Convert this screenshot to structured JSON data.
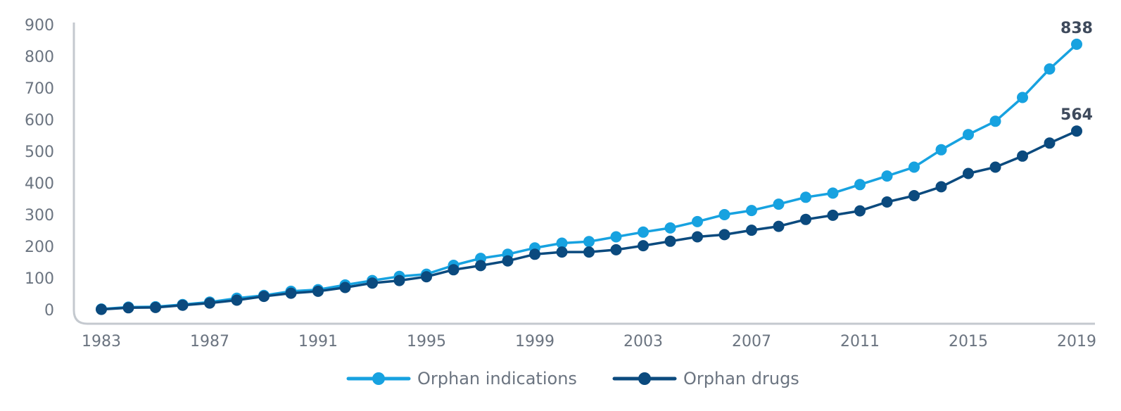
{
  "chart_data": {
    "type": "line",
    "x": [
      1983,
      1984,
      1985,
      1986,
      1987,
      1988,
      1989,
      1990,
      1991,
      1992,
      1993,
      1994,
      1995,
      1996,
      1997,
      1998,
      1999,
      2000,
      2001,
      2002,
      2003,
      2004,
      2005,
      2006,
      2007,
      2008,
      2009,
      2010,
      2011,
      2012,
      2013,
      2014,
      2015,
      2016,
      2017,
      2018,
      2019
    ],
    "xticks": [
      "1983",
      "1987",
      "1991",
      "1995",
      "1999",
      "2003",
      "2007",
      "2011",
      "2015",
      "2019"
    ],
    "yticks": [
      "0",
      "100",
      "200",
      "300",
      "400",
      "500",
      "600",
      "700",
      "800",
      "900"
    ],
    "ylim": [
      0,
      900
    ],
    "series": [
      {
        "name": "Orphan indications",
        "color": "#17a2e0",
        "values": [
          2,
          8,
          9,
          16,
          24,
          36,
          45,
          58,
          63,
          78,
          92,
          105,
          112,
          140,
          162,
          175,
          195,
          210,
          215,
          230,
          245,
          258,
          278,
          300,
          313,
          333,
          355,
          368,
          395,
          422,
          450,
          505,
          553,
          595,
          670,
          760,
          838
        ],
        "end_label": "838"
      },
      {
        "name": "Orphan drugs",
        "color": "#0b4a7e",
        "values": [
          1,
          6,
          7,
          14,
          21,
          30,
          42,
          52,
          58,
          70,
          84,
          92,
          104,
          126,
          139,
          154,
          175,
          182,
          182,
          189,
          202,
          216,
          230,
          237,
          251,
          263,
          285,
          298,
          312,
          340,
          360,
          388,
          430,
          450,
          485,
          526,
          564
        ],
        "end_label": "564"
      }
    ],
    "grid": false,
    "legend_position": "bottom-center",
    "title": "",
    "xlabel": "",
    "ylabel": ""
  }
}
